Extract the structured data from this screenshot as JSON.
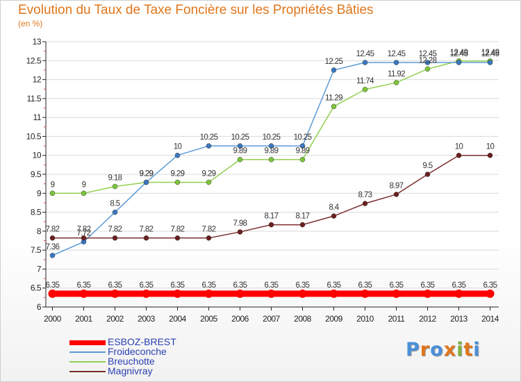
{
  "header": {
    "title": "Evolution du Taux de Taxe Foncière sur les Propriétés Bâties",
    "subtitle": "(en %)"
  },
  "chart_data": {
    "type": "line",
    "title": "Evolution du Taux de Taxe Foncière sur les Propriétés Bâties",
    "ylabel": "(en %)",
    "xlabel": "",
    "ylim": [
      6,
      13
    ],
    "yticks": [
      "6",
      "6.5",
      "7",
      "7.5",
      "8",
      "8.5",
      "9",
      "9.5",
      "10",
      "10.5",
      "11",
      "11.5",
      "12",
      "12.5",
      "13"
    ],
    "x": [
      "2000",
      "2001",
      "2002",
      "2003",
      "2004",
      "2005",
      "2006",
      "2007",
      "2008",
      "2009",
      "2010",
      "2011",
      "2012",
      "2013",
      "2014"
    ],
    "grid": "horizontal",
    "series": [
      {
        "name": "ESBOZ-BREST",
        "color": "#ff0000",
        "values": [
          6.35,
          6.35,
          6.35,
          6.35,
          6.35,
          6.35,
          6.35,
          6.35,
          6.35,
          6.35,
          6.35,
          6.35,
          6.35,
          6.35,
          6.35
        ],
        "labels": [
          "6.35",
          "6.35",
          "6.35",
          "6.35",
          "6.35",
          "6.35",
          "6.35",
          "6.35",
          "6.35",
          "6.35",
          "6.35",
          "6.35",
          "6.35",
          "6.35",
          "6.35"
        ]
      },
      {
        "name": "Froideconche",
        "color": "#5b9bd5",
        "values": [
          7.36,
          7.72,
          8.5,
          9.29,
          10,
          10.25,
          10.25,
          10.25,
          10.25,
          12.25,
          12.45,
          12.45,
          12.45,
          12.45,
          12.45
        ],
        "labels": [
          "7.36",
          "7.72",
          "8.5",
          "9.29",
          "10",
          "10.25",
          "10.25",
          "10.25",
          "10.25",
          "12.25",
          "12.45",
          "12.45",
          "12.45",
          "12.45",
          "12.45"
        ]
      },
      {
        "name": "Breuchotte",
        "color": "#92d050",
        "values": [
          9,
          9,
          9.18,
          9.29,
          9.29,
          9.29,
          9.89,
          9.89,
          9.89,
          11.29,
          11.74,
          11.92,
          12.28,
          12.49,
          12.49
        ],
        "labels": [
          "9",
          "9",
          "9.18",
          "9.29",
          "9.29",
          "9.29",
          "9.89",
          "9.89",
          "9.89",
          "11.29",
          "11.74",
          "11.92",
          "12.28",
          "12.49",
          "12.49"
        ]
      },
      {
        "name": "Magnivray",
        "color": "#7a2b2b",
        "values": [
          7.82,
          7.82,
          7.82,
          7.82,
          7.82,
          7.82,
          7.98,
          8.17,
          8.17,
          8.4,
          8.73,
          8.97,
          9.5,
          10,
          10
        ],
        "labels": [
          "7.82",
          "7.82",
          "7.82",
          "7.82",
          "7.82",
          "7.82",
          "7.98",
          "8.17",
          "8.17",
          "8.4",
          "8.73",
          "8.97",
          "9.5",
          "10",
          "10"
        ]
      }
    ],
    "legend_position": "bottom-left"
  },
  "legend": {
    "items": [
      {
        "label": "ESBOZ-BREST",
        "color": "#ff0000"
      },
      {
        "label": "Froideconche",
        "color": "#5b9bd5"
      },
      {
        "label": "Breuchotte",
        "color": "#92d050"
      },
      {
        "label": "Magnivray",
        "color": "#7a2b2b"
      }
    ]
  },
  "logo": {
    "letters": [
      "P",
      "r",
      "o",
      "x",
      "i",
      "t",
      "i"
    ],
    "colors": [
      "#4a90d9",
      "#e0761c",
      "#4a90d9",
      "#e0761c",
      "#7cb342",
      "#e0761c",
      "#4a90d9"
    ]
  }
}
